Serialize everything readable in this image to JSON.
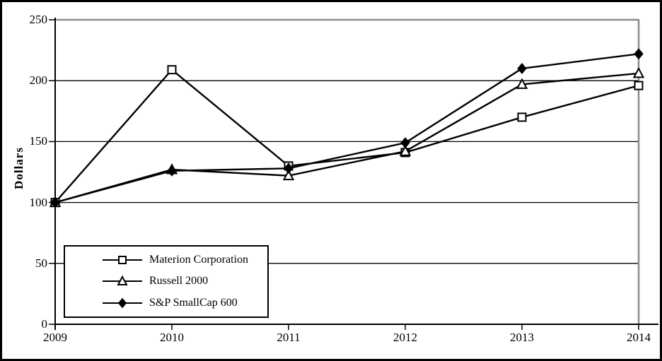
{
  "chart_data": {
    "type": "line",
    "title": "",
    "xlabel": "",
    "ylabel": "Dollars",
    "x": [
      2009,
      2010,
      2011,
      2012,
      2013,
      2014
    ],
    "x_tick_labels": [
      "2009",
      "2010",
      "2011",
      "2012",
      "2013",
      "2014"
    ],
    "y_ticks": [
      0,
      50,
      100,
      150,
      200,
      250
    ],
    "y_tick_labels": [
      "0",
      "50",
      "100",
      "150",
      "200",
      "250"
    ],
    "ylim": [
      0,
      250
    ],
    "grid": "horizontal",
    "legend_position": "inside-lower-left",
    "series": [
      {
        "name": "Materion Corporation",
        "marker": "open-square",
        "line_color": "#000000",
        "values": [
          100,
          209,
          130,
          141,
          170,
          196
        ]
      },
      {
        "name": "Russell 2000",
        "marker": "open-triangle",
        "line_color": "#000000",
        "values": [
          100,
          127,
          122,
          142,
          197,
          206
        ]
      },
      {
        "name": "S&P SmallCap 600",
        "marker": "filled-diamond",
        "line_color": "#000000",
        "values": [
          100,
          126,
          128,
          149,
          210,
          222
        ]
      }
    ],
    "colors": {
      "axis": "#000000",
      "gridline": "#000000",
      "plot_top_border": "#8c8c8c",
      "plot_right_border": "#8c8c8c",
      "outer_frame": "#000000",
      "background": "#ffffff",
      "marker_fill_open": "#ffffff",
      "marker_fill_solid": "#000000"
    }
  }
}
